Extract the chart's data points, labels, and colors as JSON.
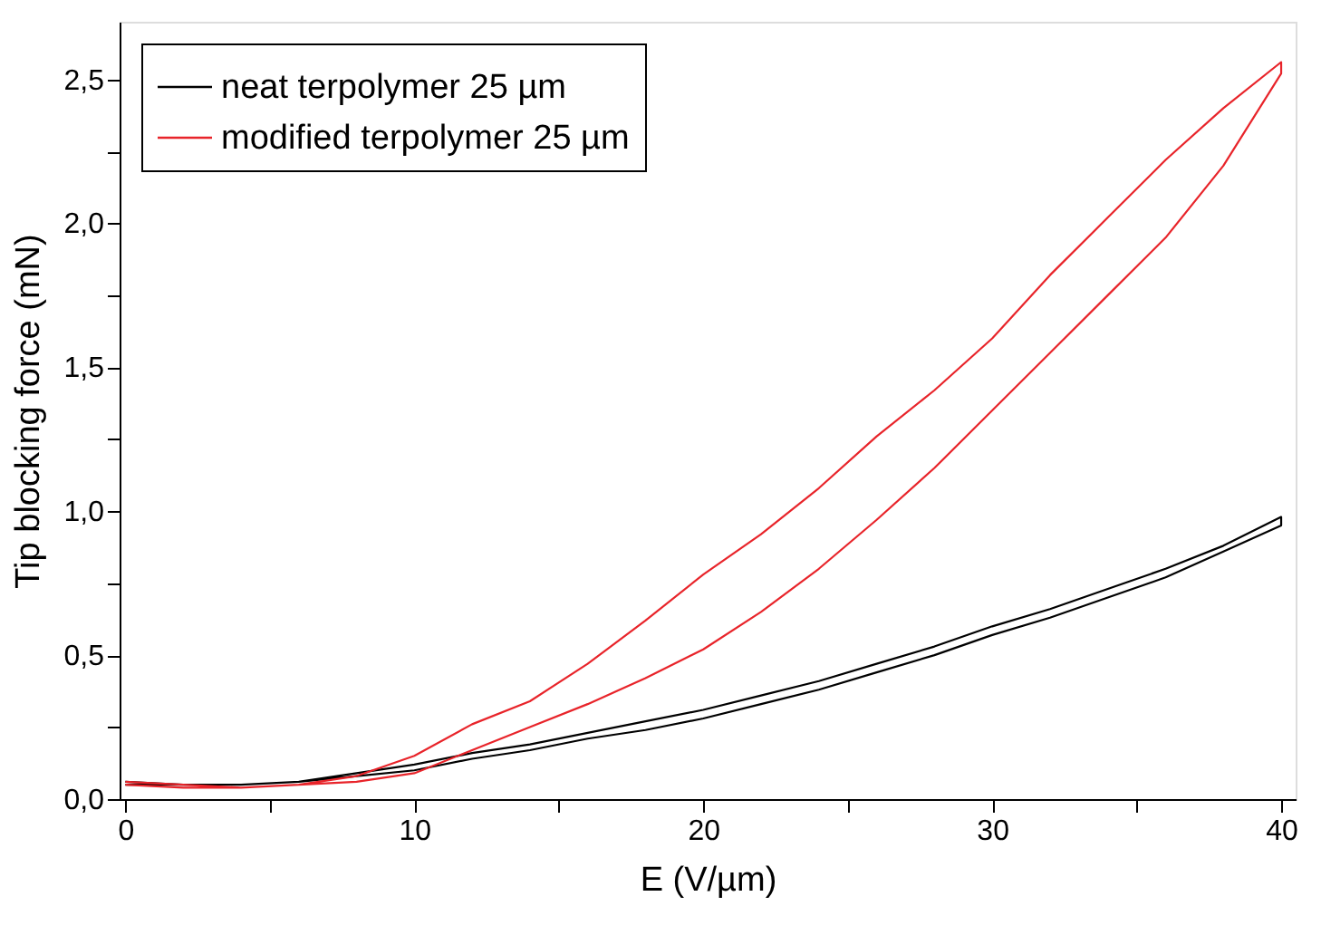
{
  "chart_data": {
    "type": "line",
    "xlabel": "E (V/µm)",
    "ylabel": "Tip blocking force (mN)",
    "xlim": [
      -0.2,
      40.5
    ],
    "ylim": [
      0,
      2.7
    ],
    "xticks": [
      0,
      {
        "value": 5,
        "label": null
      },
      10,
      {
        "value": 15,
        "label": null
      },
      20,
      {
        "value": 25,
        "label": null
      },
      30,
      {
        "value": 35,
        "label": null
      },
      40
    ],
    "yticks": [
      {
        "value": 0,
        "label": "0,0"
      },
      {
        "value": 0.25,
        "label": null
      },
      {
        "value": 0.5,
        "label": "0,5"
      },
      {
        "value": 0.75,
        "label": null
      },
      {
        "value": 1,
        "label": "1,0"
      },
      {
        "value": 1.25,
        "label": null
      },
      {
        "value": 1.5,
        "label": "1,5"
      },
      {
        "value": 1.75,
        "label": null
      },
      {
        "value": 2,
        "label": "2,0"
      },
      {
        "value": 2.25,
        "label": null
      },
      {
        "value": 2.5,
        "label": "2,5"
      }
    ],
    "legend": "top left",
    "grid": false,
    "marker": "none",
    "line_style": "solid",
    "series": [
      {
        "name": "neat terpolymer 25 µm",
        "color": "#000000",
        "x": [
          0,
          2,
          4,
          6,
          8,
          10,
          12,
          14,
          16,
          18,
          20,
          22,
          24,
          26,
          28,
          30,
          32,
          34,
          36,
          38,
          40,
          40,
          38,
          36,
          34,
          32,
          30,
          28,
          26,
          24,
          22,
          20,
          18,
          16,
          14,
          12,
          10,
          8,
          6,
          4,
          2,
          0
        ],
        "values": [
          0.05,
          0.05,
          0.05,
          0.06,
          0.08,
          0.1,
          0.14,
          0.17,
          0.21,
          0.24,
          0.28,
          0.33,
          0.38,
          0.44,
          0.5,
          0.57,
          0.63,
          0.7,
          0.77,
          0.86,
          0.95,
          0.98,
          0.88,
          0.8,
          0.73,
          0.66,
          0.6,
          0.53,
          0.47,
          0.41,
          0.36,
          0.31,
          0.27,
          0.23,
          0.19,
          0.16,
          0.12,
          0.09,
          0.06,
          0.05,
          0.05,
          0.06
        ]
      },
      {
        "name": "modified terpolymer 25 µm",
        "color": "#e8242a",
        "x": [
          0,
          2,
          4,
          6,
          8,
          10,
          12,
          14,
          16,
          18,
          20,
          22,
          24,
          26,
          28,
          30,
          32,
          34,
          36,
          38,
          40,
          40,
          38,
          36,
          34,
          32,
          30,
          28,
          26,
          24,
          22,
          20,
          18,
          16,
          14,
          12,
          10,
          8,
          6,
          4,
          2,
          0
        ],
        "values": [
          0.05,
          0.04,
          0.04,
          0.05,
          0.06,
          0.09,
          0.17,
          0.25,
          0.33,
          0.42,
          0.52,
          0.65,
          0.8,
          0.97,
          1.15,
          1.35,
          1.55,
          1.75,
          1.95,
          2.2,
          2.52,
          2.56,
          2.4,
          2.22,
          2.02,
          1.82,
          1.6,
          1.42,
          1.26,
          1.08,
          0.92,
          0.78,
          0.62,
          0.47,
          0.34,
          0.26,
          0.15,
          0.08,
          0.05,
          0.04,
          0.05,
          0.06
        ]
      }
    ]
  }
}
